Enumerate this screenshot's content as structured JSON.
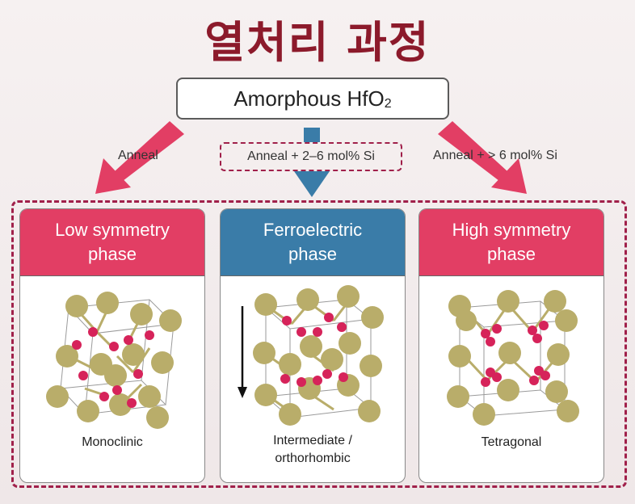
{
  "title": "열처리 과정",
  "source": {
    "label_main": "Amorphous HfO",
    "label_sub": "2"
  },
  "paths": [
    {
      "label": "Anneal"
    },
    {
      "label": "Anneal + 2–6 mol% Si"
    },
    {
      "label": "Anneal + > 6 mol% Si"
    }
  ],
  "phases": [
    {
      "title": "Low symmetry\nphase",
      "caption": "Monoclinic"
    },
    {
      "title": "Ferroelectric\nphase",
      "caption": "Intermediate /\northorhombic"
    },
    {
      "title": "High symmetry\nphase",
      "caption": "Tetragonal"
    }
  ],
  "colors": {
    "pink": "#e23e64",
    "blue": "#3a7ca8",
    "title": "#8c1a2b",
    "hf_atom": "#b9ad6a",
    "o_atom": "#d6235a"
  },
  "icons": {
    "polarization": "down-arrow-icon"
  }
}
